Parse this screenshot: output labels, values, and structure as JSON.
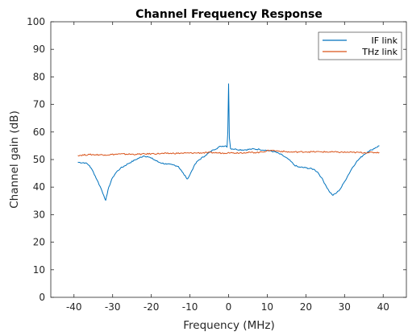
{
  "chart_data": {
    "type": "line",
    "title": "Channel Frequency Response",
    "xlabel": "Frequency (MHz)",
    "ylabel": "Channel gain (dB)",
    "xlim": [
      -46,
      46
    ],
    "ylim": [
      0,
      100
    ],
    "xticks": [
      -40,
      -30,
      -20,
      -10,
      0,
      10,
      20,
      30,
      40
    ],
    "yticks": [
      0,
      10,
      20,
      30,
      40,
      50,
      60,
      70,
      80,
      90,
      100
    ],
    "grid": false,
    "legend_position": "top-right",
    "series": [
      {
        "name": "IF link",
        "color": "#0072BD",
        "points": [
          [
            -39,
            49
          ],
          [
            -37,
            48.8
          ],
          [
            -36,
            47.8
          ],
          [
            -35,
            45.5
          ],
          [
            -34,
            42.5
          ],
          [
            -33,
            39.5
          ],
          [
            -32.3,
            37
          ],
          [
            -31.8,
            35.2
          ],
          [
            -31.4,
            37.5
          ],
          [
            -31,
            40
          ],
          [
            -30,
            43.5
          ],
          [
            -29,
            45.5
          ],
          [
            -28,
            46.8
          ],
          [
            -26,
            48.5
          ],
          [
            -24,
            50
          ],
          [
            -22,
            51.3
          ],
          [
            -21,
            51.1
          ],
          [
            -20,
            50.5
          ],
          [
            -18,
            49
          ],
          [
            -16,
            48.3
          ],
          [
            -14,
            48
          ],
          [
            -13,
            47.5
          ],
          [
            -12,
            45.5
          ],
          [
            -11,
            43.5
          ],
          [
            -10.6,
            43
          ],
          [
            -10,
            44.5
          ],
          [
            -9,
            47.5
          ],
          [
            -8,
            49.5
          ],
          [
            -6,
            51.5
          ],
          [
            -4,
            53.5
          ],
          [
            -2,
            54.8
          ],
          [
            -0.8,
            55
          ],
          [
            -0.4,
            54.5
          ],
          [
            -0.2,
            60
          ],
          [
            0,
            77.5
          ],
          [
            0.2,
            58
          ],
          [
            0.5,
            54
          ],
          [
            2,
            53.7
          ],
          [
            4,
            53.5
          ],
          [
            6,
            53.8
          ],
          [
            8,
            53.7
          ],
          [
            10,
            53.3
          ],
          [
            12,
            52.8
          ],
          [
            14,
            51.5
          ],
          [
            16,
            49.5
          ],
          [
            17,
            48
          ],
          [
            18,
            47.3
          ],
          [
            20,
            47
          ],
          [
            22,
            46.5
          ],
          [
            23,
            45.5
          ],
          [
            24,
            43.5
          ],
          [
            25,
            41
          ],
          [
            26,
            38.5
          ],
          [
            27,
            37
          ],
          [
            28,
            38
          ],
          [
            29,
            39.5
          ],
          [
            30,
            42
          ],
          [
            31,
            44.5
          ],
          [
            32,
            47
          ],
          [
            33,
            49
          ],
          [
            34,
            50.5
          ],
          [
            35,
            51.8
          ],
          [
            36,
            52.8
          ],
          [
            37,
            53.5
          ],
          [
            38,
            54.3
          ],
          [
            39,
            55
          ]
        ]
      },
      {
        "name": "THz link",
        "color": "#D95319",
        "points": [
          [
            -39,
            51.5
          ],
          [
            -36,
            51.8
          ],
          [
            -32,
            51.7
          ],
          [
            -28,
            52
          ],
          [
            -24,
            51.9
          ],
          [
            -20,
            52.1
          ],
          [
            -16,
            52.2
          ],
          [
            -12,
            52.3
          ],
          [
            -8,
            52.4
          ],
          [
            -4,
            52.5
          ],
          [
            -1,
            52.3
          ],
          [
            0,
            52.6
          ],
          [
            1,
            52.4
          ],
          [
            4,
            52.5
          ],
          [
            8,
            52.6
          ],
          [
            11,
            53.4
          ],
          [
            12,
            53.2
          ],
          [
            16,
            52.7
          ],
          [
            20,
            52.8
          ],
          [
            24,
            52.8
          ],
          [
            28,
            52.7
          ],
          [
            32,
            52.6
          ],
          [
            36,
            52.5
          ],
          [
            39,
            52.6
          ]
        ]
      }
    ]
  }
}
